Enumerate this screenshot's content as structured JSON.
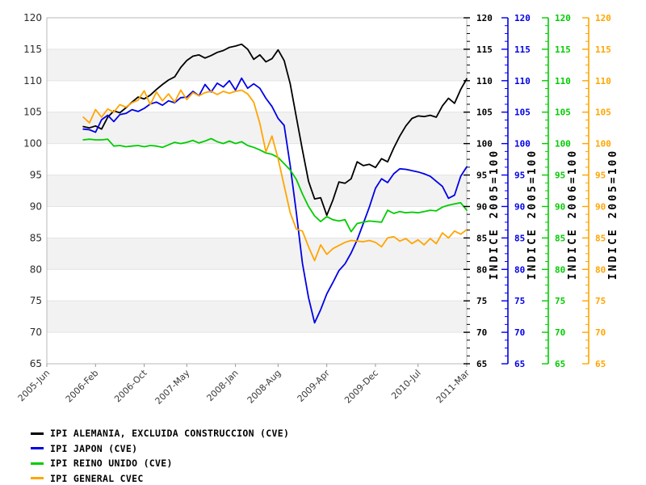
{
  "chart_data": {
    "type": "line",
    "title": "",
    "period": {
      "start": "2005-12",
      "end": "2011-03",
      "frequency": "monthly"
    },
    "x_axis": {
      "tick_labels": [
        "2005-Jun",
        "2006-Feb",
        "2006-Oct",
        "2007-May",
        "2008-Jan",
        "2008-Aug",
        "2009-Apr",
        "2009-Dec",
        "2010-Jul",
        "2011-Mar"
      ],
      "tick_months_from_2005_jun": [
        0,
        8,
        16,
        23,
        31,
        38,
        46,
        54,
        61,
        69
      ],
      "total_months": 69,
      "series_start_month": 6
    },
    "y_axis": {
      "ticks": [
        65,
        70,
        75,
        80,
        85,
        90,
        95,
        100,
        105,
        110,
        115,
        120
      ],
      "ylim": [
        65,
        120
      ],
      "shaded_bands": [
        [
          110,
          115
        ],
        [
          100,
          105
        ],
        [
          90,
          95
        ],
        [
          80,
          85
        ],
        [
          70,
          75
        ]
      ]
    },
    "right_axes": [
      {
        "series": 0,
        "style": "dashed-ticks",
        "color": "#000000",
        "unit_label": "INDICE 2005=100"
      },
      {
        "series": 1,
        "style": "solid",
        "color": "#0000e6",
        "unit_label": "INDICE 2005=100"
      },
      {
        "series": 2,
        "style": "solid",
        "color": "#00cc00",
        "unit_label": "INDICE 2006=100"
      },
      {
        "series": 3,
        "style": "solid",
        "color": "#ffa500",
        "unit_label": "INDICE 2005=100"
      }
    ],
    "series": [
      {
        "name": "alemania",
        "label": "IPI ALEMANIA, EXCLUIDA CONSTRUCCION (CVE)",
        "color": "#000000",
        "values": [
          102.7,
          102.5,
          102.8,
          102.3,
          104.2,
          105.2,
          104.9,
          105.7,
          106.6,
          107.4,
          107.1,
          107.7,
          108.6,
          109.4,
          110.1,
          110.6,
          112.1,
          113.2,
          113.9,
          114.1,
          113.6,
          114.0,
          114.5,
          114.8,
          115.3,
          115.5,
          115.8,
          115.0,
          113.4,
          114.1,
          113.0,
          113.5,
          114.9,
          113.2,
          109.5,
          104.2,
          99.0,
          94.0,
          91.2,
          91.4,
          88.6,
          91.0,
          93.9,
          93.7,
          94.4,
          97.1,
          96.5,
          96.7,
          96.2,
          97.6,
          97.1,
          99.3,
          101.2,
          102.8,
          104.0,
          104.4,
          104.3,
          104.5,
          104.2,
          106.0,
          107.2,
          106.4,
          108.6,
          110.3
        ]
      },
      {
        "name": "japon",
        "label": "IPI JAPON (CVE)",
        "color": "#0000e6",
        "values": [
          102.3,
          102.2,
          101.8,
          103.8,
          104.5,
          103.5,
          104.6,
          104.8,
          105.4,
          105.1,
          105.6,
          106.3,
          106.6,
          106.1,
          106.8,
          106.5,
          107.3,
          107.4,
          108.3,
          107.6,
          109.4,
          108.2,
          109.6,
          109.0,
          110.0,
          108.5,
          110.4,
          108.8,
          109.5,
          108.8,
          107.2,
          105.9,
          104.0,
          102.9,
          96.5,
          89.0,
          81.0,
          75.5,
          71.5,
          73.6,
          76.1,
          77.9,
          79.8,
          80.9,
          82.6,
          84.7,
          87.3,
          89.9,
          92.9,
          94.4,
          93.8,
          95.2,
          96.0,
          95.9,
          95.7,
          95.5,
          95.2,
          94.8,
          94.0,
          93.2,
          91.3,
          91.8,
          94.8,
          96.3
        ]
      },
      {
        "name": "reino-unido",
        "label": "IPI REINO UNIDO (CVE)",
        "color": "#00cc00",
        "values": [
          100.6,
          100.7,
          100.6,
          100.6,
          100.7,
          99.6,
          99.7,
          99.5,
          99.6,
          99.7,
          99.5,
          99.7,
          99.6,
          99.4,
          99.8,
          100.2,
          100.0,
          100.2,
          100.5,
          100.1,
          100.4,
          100.8,
          100.3,
          100.0,
          100.4,
          100.0,
          100.3,
          99.7,
          99.4,
          99.0,
          98.5,
          98.3,
          97.8,
          96.8,
          95.8,
          94.3,
          92.0,
          90.0,
          88.5,
          87.6,
          88.4,
          87.9,
          87.7,
          87.9,
          86.0,
          87.3,
          87.5,
          87.7,
          87.6,
          87.5,
          89.4,
          88.9,
          89.2,
          89.0,
          89.1,
          89.0,
          89.2,
          89.4,
          89.3,
          89.9,
          90.2,
          90.4,
          90.6,
          89.4
        ]
      },
      {
        "name": "general",
        "label": "IPI GENERAL CVEC",
        "color": "#ffa500",
        "values": [
          104.2,
          103.3,
          105.4,
          104.2,
          105.5,
          105.0,
          106.2,
          105.8,
          106.5,
          106.9,
          108.4,
          106.2,
          108.2,
          106.8,
          107.9,
          106.6,
          108.5,
          107.0,
          108.1,
          107.6,
          108.1,
          108.3,
          107.8,
          108.3,
          108.0,
          108.3,
          108.5,
          107.9,
          106.6,
          103.2,
          98.7,
          101.2,
          97.6,
          93.3,
          89.0,
          86.4,
          86.1,
          83.6,
          81.4,
          83.9,
          82.4,
          83.3,
          83.8,
          84.3,
          84.6,
          84.5,
          84.4,
          84.6,
          84.3,
          83.6,
          85.0,
          85.2,
          84.5,
          84.9,
          84.1,
          84.7,
          83.9,
          84.9,
          84.1,
          85.8,
          85.0,
          86.1,
          85.6,
          86.3
        ]
      }
    ],
    "style_colors": {
      "band_fill": "#f2f2f2",
      "gridline": "#e4e4e4",
      "plot_border": "#b8b8b8",
      "tick_text": "#2b2b2b"
    },
    "legend_position": "bottom-left",
    "grid": "horizontal-only"
  }
}
